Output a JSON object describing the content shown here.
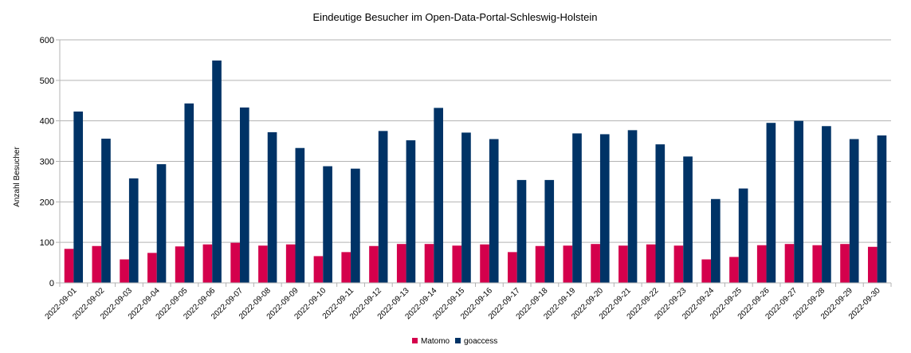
{
  "chart_data": {
    "type": "bar",
    "title": "Eindeutige Besucher im Open-Data-Portal-Schleswig-Holstein",
    "xlabel": "",
    "ylabel": "Anzahl Besucher",
    "ylim": [
      0,
      600
    ],
    "yticks": [
      0,
      100,
      200,
      300,
      400,
      500,
      600
    ],
    "grid": true,
    "legend_position": "bottom",
    "categories": [
      "2022-09-01",
      "2022-09-02",
      "2022-09-03",
      "2022-09-04",
      "2022-09-05",
      "2022-09-06",
      "2022-09-07",
      "2022-09-08",
      "2022-09-09",
      "2022-09-10",
      "2022-09-11",
      "2022-09-12",
      "2022-09-13",
      "2022-09-14",
      "2022-09-15",
      "2022-09-16",
      "2022-09-17",
      "2022-09-18",
      "2022-09-19",
      "2022-09-20",
      "2022-09-21",
      "2022-09-22",
      "2022-09-23",
      "2022-09-24",
      "2022-09-25",
      "2022-09-26",
      "2022-09-27",
      "2022-09-28",
      "2022-09-29",
      "2022-09-30"
    ],
    "series": [
      {
        "name": "Matomo",
        "color": "#d4004c",
        "values": [
          84,
          91,
          58,
          74,
          90,
          95,
          99,
          92,
          95,
          66,
          76,
          91,
          96,
          96,
          92,
          95,
          76,
          91,
          92,
          96,
          92,
          95,
          92,
          58,
          64,
          93,
          96,
          93,
          96,
          89
        ]
      },
      {
        "name": "goaccess",
        "color": "#003366",
        "values": [
          423,
          356,
          258,
          293,
          443,
          549,
          433,
          372,
          333,
          288,
          282,
          375,
          352,
          432,
          371,
          355,
          254,
          254,
          369,
          367,
          377,
          342,
          312,
          207,
          233,
          395,
          400,
          387,
          355,
          364
        ]
      }
    ]
  }
}
